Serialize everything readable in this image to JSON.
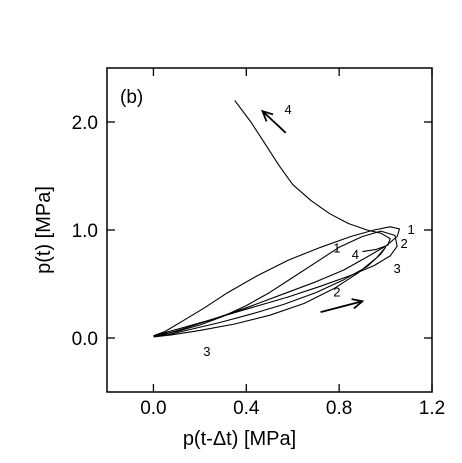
{
  "chart_data": {
    "type": "line",
    "panel_label": "(b)",
    "xlabel": "p(t-Δt) [MPa]",
    "ylabel": "p(t) [MPa]",
    "xlim": [
      -0.2,
      1.2
    ],
    "ylim": [
      -0.5,
      2.5
    ],
    "xticks": [
      0.0,
      0.4,
      0.8,
      1.2
    ],
    "xtick_labels": [
      "0.0",
      "0.4",
      "0.8",
      "1.2"
    ],
    "yticks": [
      0.0,
      1.0,
      2.0
    ],
    "ytick_labels": [
      "0.0",
      "1.0",
      "2.0"
    ],
    "grid": false,
    "series": [
      {
        "label": "1",
        "color": "#000000",
        "x": [
          0.0,
          0.05,
          0.12,
          0.22,
          0.32,
          0.45,
          0.58,
          0.72,
          0.85,
          0.95,
          1.02,
          1.06,
          1.05,
          1.0,
          0.92,
          0.82,
          0.7,
          0.55,
          0.4,
          0.25,
          0.12,
          0.04,
          0.0
        ],
        "y": [
          0.02,
          0.06,
          0.15,
          0.28,
          0.42,
          0.58,
          0.72,
          0.84,
          0.94,
          1.0,
          1.03,
          1.01,
          0.94,
          0.85,
          0.75,
          0.63,
          0.52,
          0.4,
          0.28,
          0.17,
          0.08,
          0.03,
          0.02
        ]
      },
      {
        "label": "2",
        "color": "#000000",
        "x": [
          0.02,
          0.1,
          0.2,
          0.3,
          0.4,
          0.5,
          0.6,
          0.7,
          0.8,
          0.9,
          0.98,
          1.04,
          1.05,
          1.02,
          0.95,
          0.85,
          0.72,
          0.58,
          0.42,
          0.28,
          0.15,
          0.05,
          0.02
        ],
        "y": [
          0.03,
          0.06,
          0.12,
          0.2,
          0.3,
          0.42,
          0.56,
          0.7,
          0.84,
          0.94,
          0.99,
          0.95,
          0.85,
          0.76,
          0.67,
          0.58,
          0.48,
          0.38,
          0.28,
          0.19,
          0.11,
          0.05,
          0.03
        ]
      },
      {
        "label": "3",
        "color": "#000000",
        "x": [
          0.0,
          0.08,
          0.2,
          0.35,
          0.5,
          0.65,
          0.78,
          0.88,
          0.96,
          1.0,
          0.98,
          0.92,
          0.82,
          0.7,
          0.56,
          0.42,
          0.28,
          0.16,
          0.06,
          0.0
        ],
        "y": [
          0.01,
          0.03,
          0.07,
          0.13,
          0.21,
          0.32,
          0.46,
          0.6,
          0.74,
          0.84,
          0.78,
          0.66,
          0.54,
          0.42,
          0.31,
          0.22,
          0.14,
          0.08,
          0.03,
          0.01
        ]
      },
      {
        "label": "4",
        "color": "#000000",
        "x": [
          0.35,
          0.42,
          0.48,
          0.54,
          0.6,
          0.68,
          0.76,
          0.84,
          0.92,
          0.98,
          1.02,
          1.01,
          0.96,
          0.9
        ],
        "y": [
          2.2,
          2.0,
          1.8,
          1.6,
          1.42,
          1.27,
          1.15,
          1.06,
          1.0,
          0.97,
          0.92,
          0.86,
          0.82,
          0.8
        ]
      }
    ],
    "curve_labels": [
      {
        "text": "1",
        "x": 0.79,
        "y": 0.84
      },
      {
        "text": "2",
        "x": 0.79,
        "y": 0.43
      },
      {
        "text": "3",
        "x": 0.23,
        "y": -0.12
      },
      {
        "text": "1",
        "x": 1.11,
        "y": 1.01
      },
      {
        "text": "2",
        "x": 1.08,
        "y": 0.88
      },
      {
        "text": "3",
        "x": 1.05,
        "y": 0.65
      },
      {
        "text": "4",
        "x": 0.87,
        "y": 0.78
      },
      {
        "text": "4",
        "x": 0.58,
        "y": 2.12
      }
    ],
    "arrows": [
      {
        "from": [
          0.57,
          1.9
        ],
        "to": [
          0.47,
          2.1
        ]
      },
      {
        "from": [
          0.72,
          0.24
        ],
        "to": [
          0.9,
          0.34
        ]
      }
    ]
  }
}
